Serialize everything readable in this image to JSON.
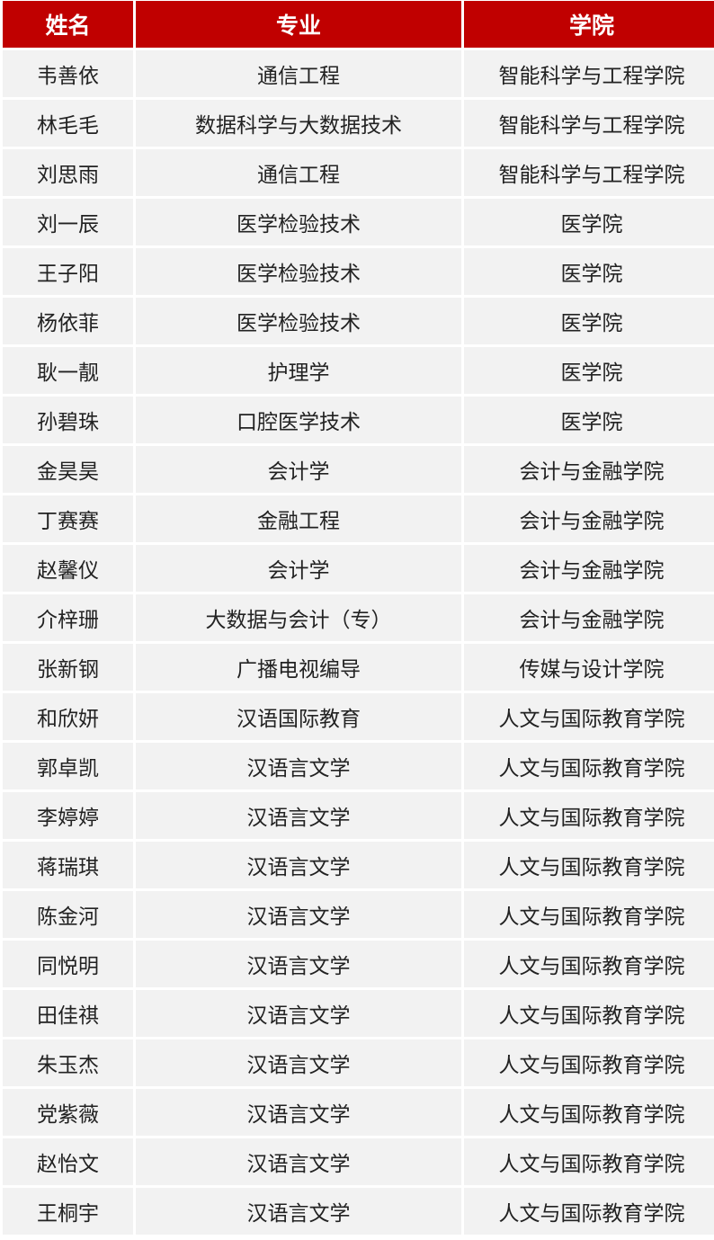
{
  "colors": {
    "header_bg": "#c00000",
    "header_text": "#ffffff",
    "row_bg": "#f2f2f2"
  },
  "table": {
    "headers": [
      "姓名",
      "专业",
      "学院"
    ],
    "rows": [
      [
        "韦善依",
        "通信工程",
        "智能科学与工程学院"
      ],
      [
        "林毛毛",
        "数据科学与大数据技术",
        "智能科学与工程学院"
      ],
      [
        "刘思雨",
        "通信工程",
        "智能科学与工程学院"
      ],
      [
        "刘一辰",
        "医学检验技术",
        "医学院"
      ],
      [
        "王子阳",
        "医学检验技术",
        "医学院"
      ],
      [
        "杨依菲",
        "医学检验技术",
        "医学院"
      ],
      [
        "耿一靓",
        "护理学",
        "医学院"
      ],
      [
        "孙碧珠",
        "口腔医学技术",
        "医学院"
      ],
      [
        "金昊昊",
        "会计学",
        "会计与金融学院"
      ],
      [
        "丁赛赛",
        "金融工程",
        "会计与金融学院"
      ],
      [
        "赵馨仪",
        "会计学",
        "会计与金融学院"
      ],
      [
        "介梓珊",
        "大数据与会计（专）",
        "会计与金融学院"
      ],
      [
        "张新钢",
        "广播电视编导",
        "传媒与设计学院"
      ],
      [
        "和欣妍",
        "汉语国际教育",
        "人文与国际教育学院"
      ],
      [
        "郭卓凯",
        "汉语言文学",
        "人文与国际教育学院"
      ],
      [
        "李婷婷",
        "汉语言文学",
        "人文与国际教育学院"
      ],
      [
        "蒋瑞琪",
        "汉语言文学",
        "人文与国际教育学院"
      ],
      [
        "陈金河",
        "汉语言文学",
        "人文与国际教育学院"
      ],
      [
        "同悦明",
        "汉语言文学",
        "人文与国际教育学院"
      ],
      [
        "田佳祺",
        "汉语言文学",
        "人文与国际教育学院"
      ],
      [
        "朱玉杰",
        "汉语言文学",
        "人文与国际教育学院"
      ],
      [
        "党紫薇",
        "汉语言文学",
        "人文与国际教育学院"
      ],
      [
        "赵怡文",
        "汉语言文学",
        "人文与国际教育学院"
      ],
      [
        "王桐宇",
        "汉语言文学",
        "人文与国际教育学院"
      ]
    ]
  }
}
